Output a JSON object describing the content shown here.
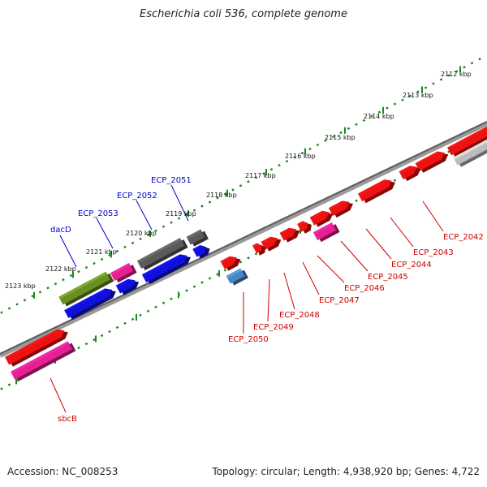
{
  "title": "Escherichia coli 536, complete genome",
  "footer": {
    "accession": "Accession: NC_008253",
    "info": "Topology: circular; Length: 4,938,920 bp; Genes: 4,722"
  },
  "colors": {
    "backbone": "#8c8c8c",
    "ticks": "#1a8a1a",
    "label_top": "#0000cc",
    "label_bottom": "#cc0000"
  },
  "scale_ticks": [
    {
      "label": "2112 kbp",
      "kbp": 2112
    },
    {
      "label": "2113 kbp",
      "kbp": 2113
    },
    {
      "label": "2114 kbp",
      "kbp": 2114
    },
    {
      "label": "2115 kbp",
      "kbp": 2115
    },
    {
      "label": "2116 kbp",
      "kbp": 2116
    },
    {
      "label": "2117 kbp",
      "kbp": 2117
    },
    {
      "label": "2118 kbp",
      "kbp": 2118
    },
    {
      "label": "2119 kbp",
      "kbp": 2119
    },
    {
      "label": "2120 kbp",
      "kbp": 2120
    },
    {
      "label": "2121 kbp",
      "kbp": 2121
    },
    {
      "label": "2122 kbp",
      "kbp": 2122
    },
    {
      "label": "2123 kbp",
      "kbp": 2123
    }
  ],
  "labels_top": [
    "ECP_2051",
    "ECP_2052",
    "ECP_2053",
    "dacD"
  ],
  "labels_bottom": [
    "ECP_2042",
    "ECP_2043",
    "ECP_2044",
    "ECP_2045",
    "ECP_2046",
    "ECP_2047",
    "ECP_2048",
    "ECP_2049",
    "ECP_2050",
    "sbcB"
  ],
  "gene_colors": {
    "red": "#ee1111",
    "blue": "#1010dd",
    "gray": "#5a5a5a",
    "olive": "#6b8e23",
    "pink": "#e5208f",
    "light_gray": "#bdbdbd",
    "steel_blue": "#4a86c5"
  }
}
